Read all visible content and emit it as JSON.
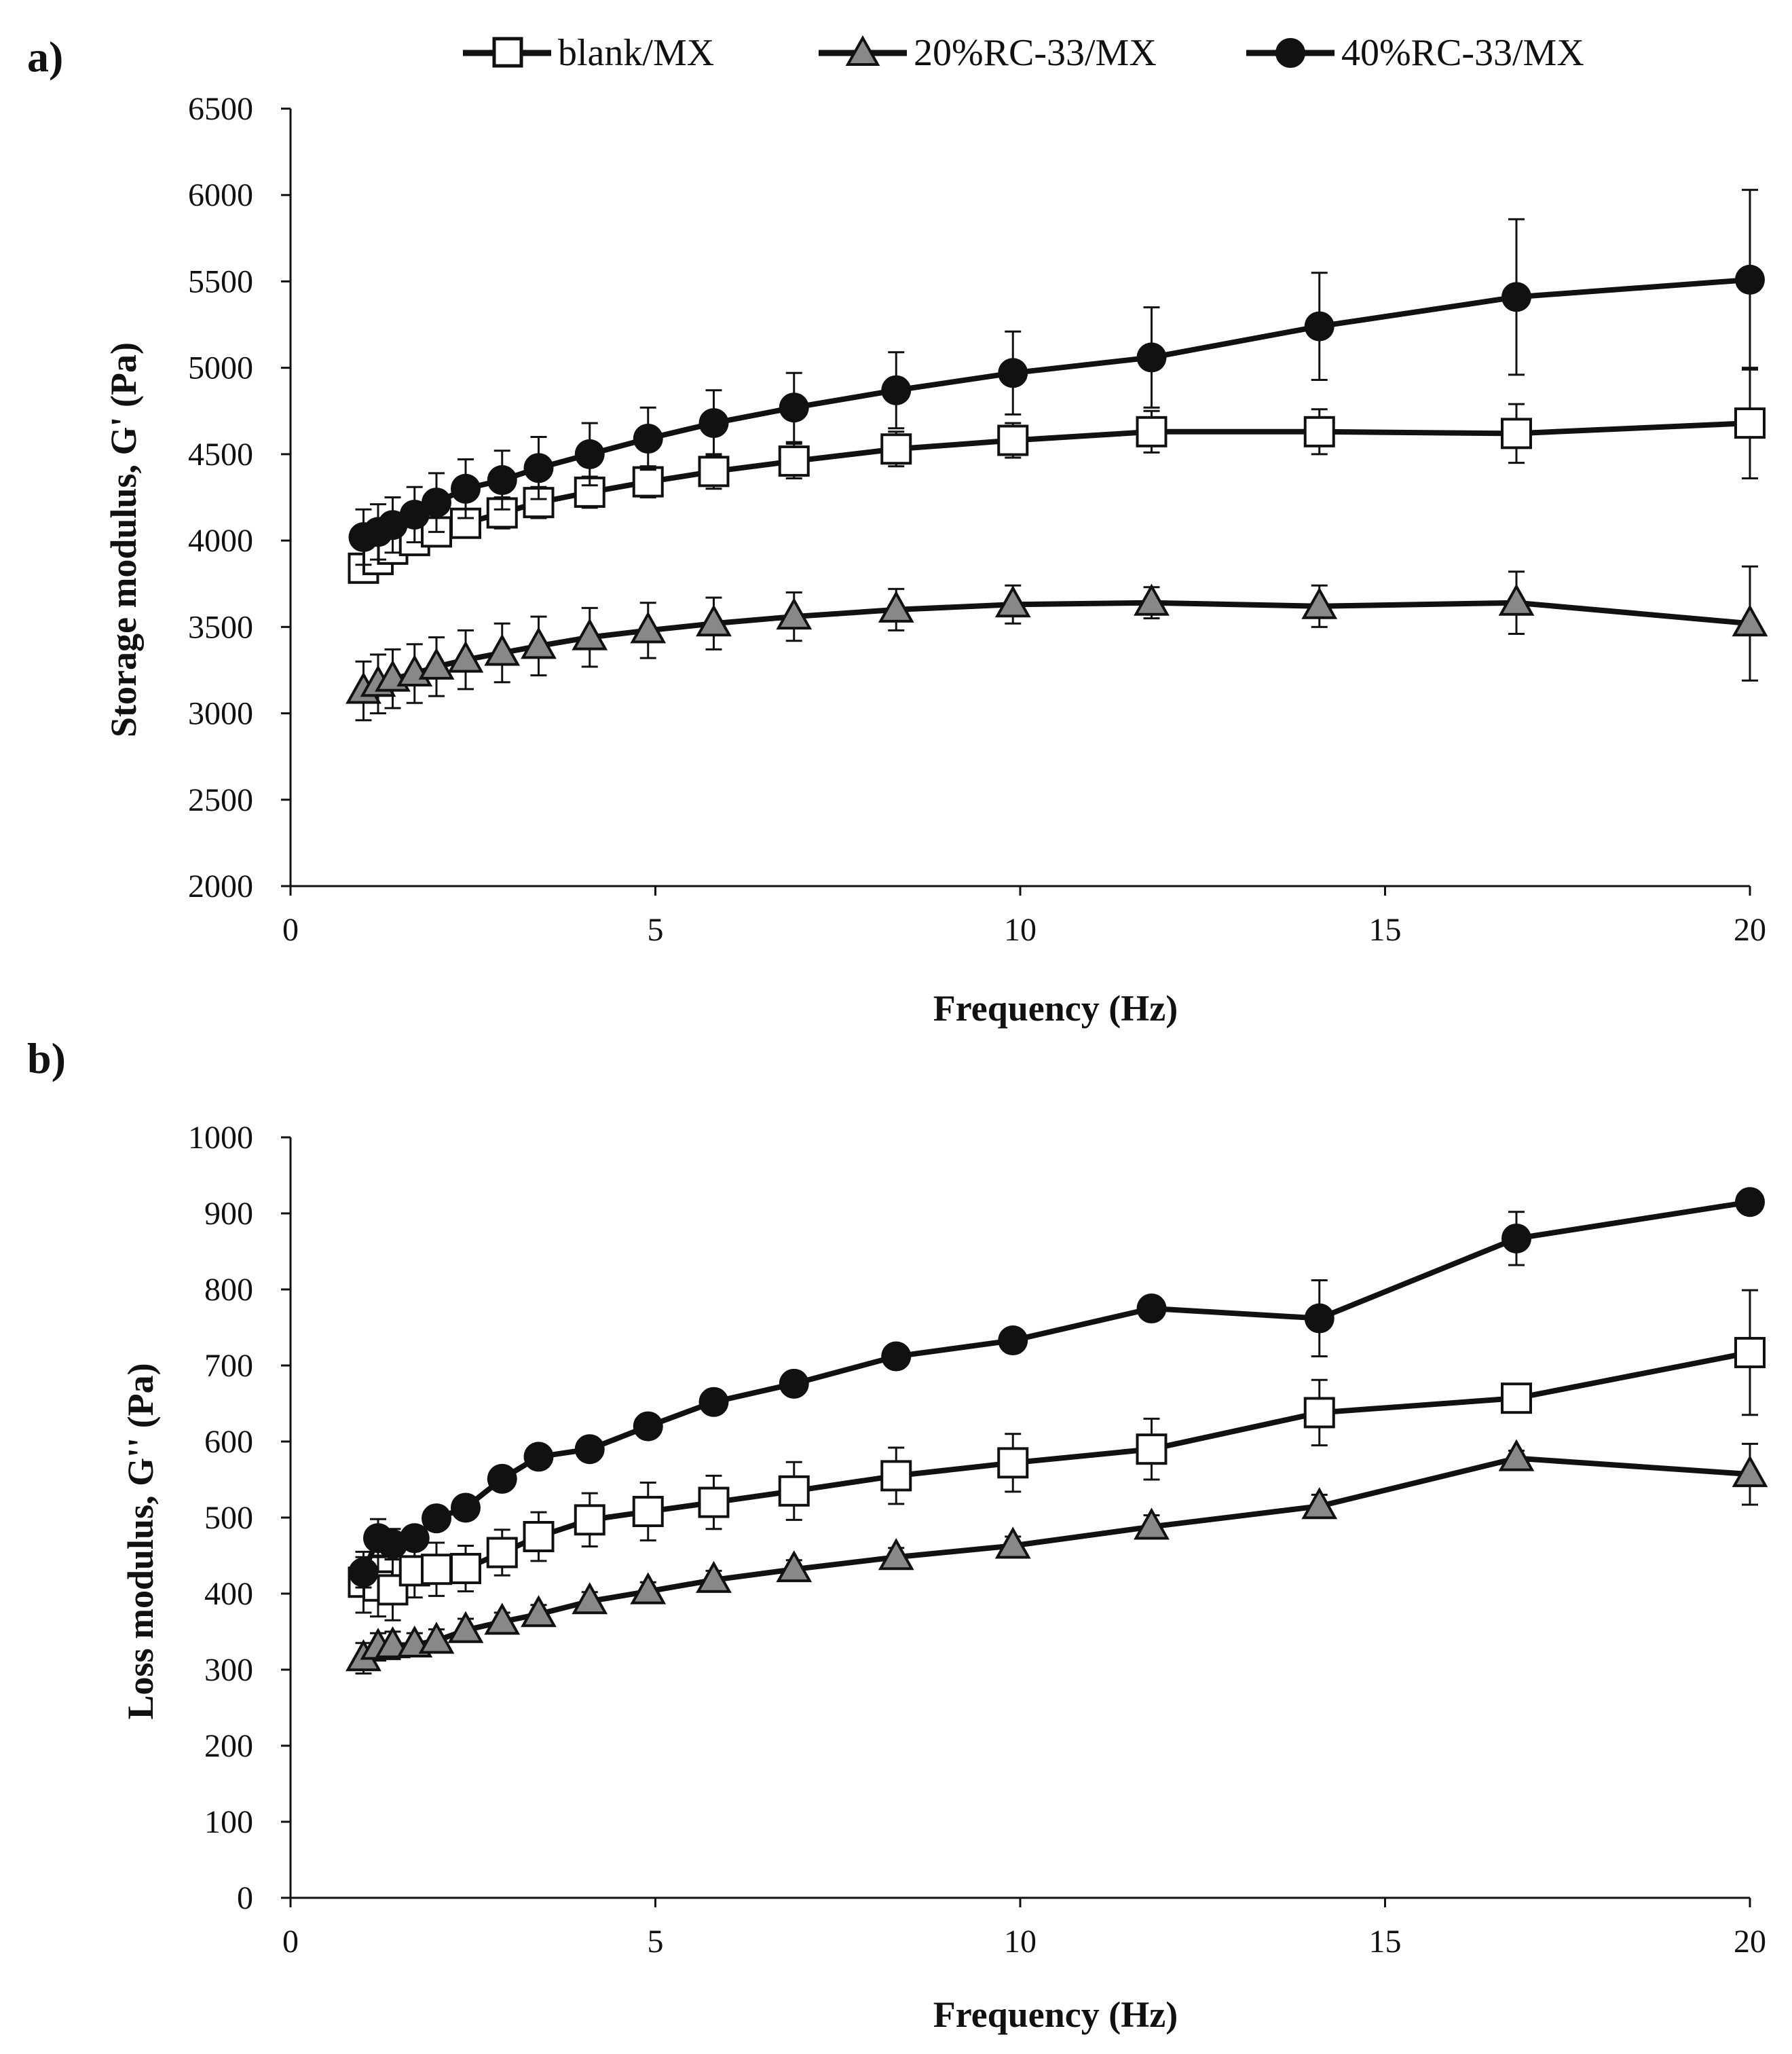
{
  "legend": [
    "blank/MX",
    "20%RC-33/MX",
    "40%RC-33/MX"
  ],
  "colors": {
    "line": "#111111",
    "triangle_fill": "#888888",
    "square_fill": "#ffffff",
    "circle_fill": "#111111"
  },
  "chart_data": [
    {
      "panel_label": "a)",
      "type": "line",
      "xlabel": "Frequency (Hz)",
      "ylabel": "Storage modulus, G' (Pa)",
      "xlim": [
        0,
        20
      ],
      "ylim": [
        2000,
        6500
      ],
      "xticks": [
        0,
        5,
        10,
        15,
        20
      ],
      "yticks": [
        2000,
        2500,
        3000,
        3500,
        4000,
        4500,
        5000,
        5500,
        6000,
        6500
      ],
      "x": [
        1,
        1.2,
        1.4,
        1.7,
        2,
        2.4,
        2.9,
        3.4,
        4.1,
        4.9,
        5.8,
        6.9,
        8.3,
        9.9,
        11.8,
        14.1,
        16.8,
        20
      ],
      "series": [
        {
          "name": "blank/MX",
          "marker": "square",
          "values": [
            3840,
            3890,
            3950,
            4000,
            4050,
            4100,
            4160,
            4220,
            4280,
            4340,
            4400,
            4460,
            4530,
            4580,
            4630,
            4630,
            4620,
            4680
          ],
          "errors": [
            80,
            80,
            80,
            80,
            80,
            80,
            90,
            90,
            90,
            90,
            100,
            100,
            100,
            100,
            120,
            130,
            170,
            320
          ]
        },
        {
          "name": "20%RC-33/MX",
          "marker": "triangle",
          "values": [
            3130,
            3170,
            3200,
            3230,
            3270,
            3310,
            3350,
            3390,
            3440,
            3480,
            3520,
            3560,
            3600,
            3630,
            3640,
            3620,
            3640,
            3520
          ],
          "errors": [
            170,
            170,
            170,
            170,
            170,
            170,
            170,
            170,
            170,
            160,
            150,
            140,
            120,
            110,
            90,
            120,
            180,
            330
          ]
        },
        {
          "name": "40%RC-33/MX",
          "marker": "circle",
          "values": [
            4020,
            4050,
            4090,
            4150,
            4220,
            4300,
            4350,
            4420,
            4500,
            4590,
            4680,
            4770,
            4870,
            4970,
            5060,
            5240,
            5410,
            5510
          ],
          "errors": [
            160,
            160,
            160,
            160,
            170,
            170,
            170,
            180,
            180,
            180,
            190,
            200,
            220,
            240,
            290,
            310,
            450,
            520
          ]
        }
      ]
    },
    {
      "panel_label": "b)",
      "type": "line",
      "xlabel": "Frequency (Hz)",
      "ylabel": "Loss modulus, G'' (Pa)",
      "xlim": [
        0,
        20
      ],
      "ylim": [
        0,
        1000
      ],
      "xticks": [
        0,
        5,
        10,
        15,
        20
      ],
      "yticks": [
        0,
        100,
        200,
        300,
        400,
        500,
        600,
        700,
        800,
        900,
        1000
      ],
      "x": [
        1,
        1.2,
        1.4,
        1.7,
        2,
        2.4,
        2.9,
        3.4,
        4.1,
        4.9,
        5.8,
        6.9,
        8.3,
        9.9,
        11.8,
        14.1,
        16.8,
        20
      ],
      "series": [
        {
          "name": "blank/MX",
          "marker": "square",
          "values": [
            415,
            410,
            405,
            430,
            432,
            433,
            454,
            475,
            497,
            508,
            520,
            535,
            555,
            572,
            590,
            638,
            657,
            717
          ],
          "errors": [
            40,
            40,
            40,
            35,
            35,
            30,
            30,
            32,
            35,
            38,
            35,
            38,
            37,
            38,
            40,
            43,
            15,
            82
          ]
        },
        {
          "name": "20%RC-33/MX",
          "marker": "triangle",
          "values": [
            315,
            330,
            332,
            333,
            338,
            352,
            363,
            373,
            390,
            403,
            418,
            432,
            448,
            463,
            488,
            515,
            578,
            557
          ],
          "errors": [
            20,
            18,
            18,
            15,
            15,
            15,
            12,
            12,
            12,
            12,
            12,
            12,
            12,
            12,
            15,
            15,
            10,
            40
          ]
        },
        {
          "name": "40%RC-33/MX",
          "marker": "circle",
          "values": [
            428,
            473,
            465,
            473,
            499,
            513,
            551,
            580,
            590,
            620,
            652,
            676,
            712,
            733,
            775,
            762,
            867,
            915
          ],
          "errors": [
            20,
            25,
            20,
            15,
            15,
            15,
            15,
            15,
            15,
            15,
            15,
            15,
            15,
            15,
            15,
            50,
            35,
            12
          ]
        }
      ]
    }
  ]
}
